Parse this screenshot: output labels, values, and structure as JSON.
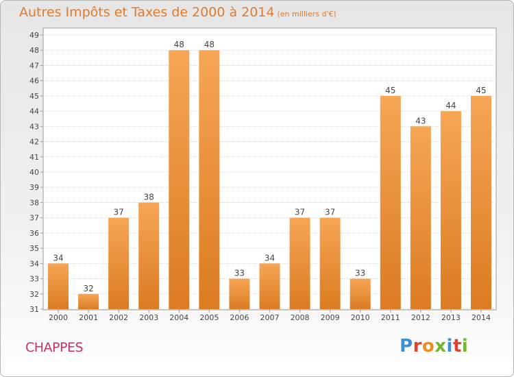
{
  "title": "Autres Impôts et Taxes de 2000 à 2014",
  "unit": "(en milliers d'€)",
  "commune": "CHAPPES",
  "brand": "Proxiti",
  "colors": {
    "bar_top": "#f6a655",
    "bar_bottom": "#db7b22",
    "title": "#e07a2c",
    "commune": "#c0336a"
  },
  "chart_data": {
    "type": "bar",
    "categories": [
      "2000",
      "2001",
      "2002",
      "2003",
      "2004",
      "2005",
      "2006",
      "2007",
      "2008",
      "2009",
      "2010",
      "2011",
      "2012",
      "2013",
      "2014"
    ],
    "values": [
      34,
      32,
      37,
      38,
      48,
      48,
      33,
      34,
      37,
      37,
      33,
      45,
      43,
      44,
      45
    ],
    "ylim": [
      31,
      49
    ],
    "yticks": [
      31,
      32,
      33,
      34,
      35,
      36,
      37,
      38,
      39,
      40,
      41,
      42,
      43,
      44,
      45,
      46,
      47,
      48,
      49
    ],
    "grid": true,
    "data_labels": true
  }
}
